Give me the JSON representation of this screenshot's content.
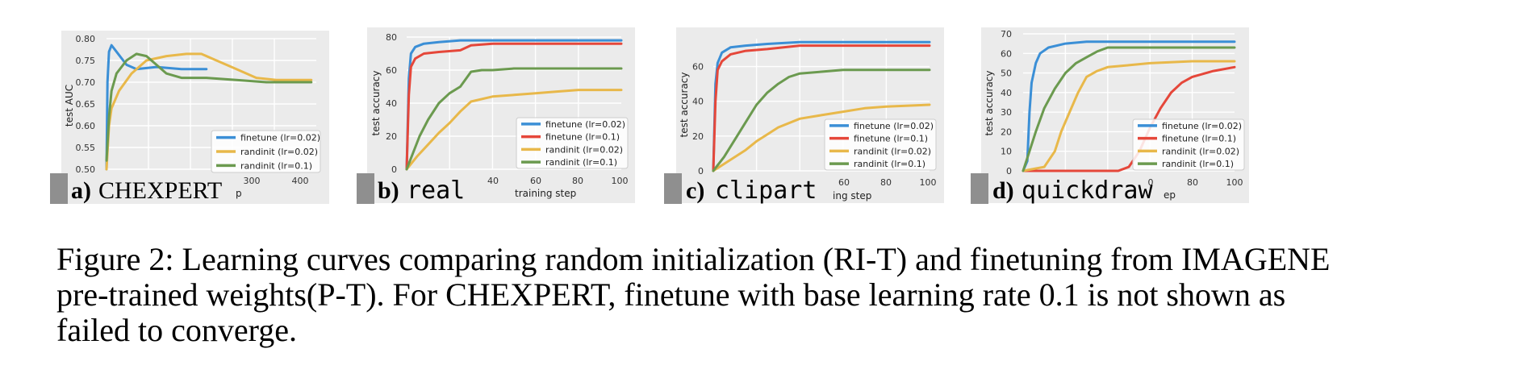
{
  "colors": {
    "finetune_002": "#3b8fd6",
    "finetune_01": "#e5473a",
    "randinit_002": "#e8b84a",
    "randinit_01": "#6b9a4f",
    "panel_bg": "#ebebeb",
    "grid": "#ffffff"
  },
  "panels": [
    {
      "letter": "a)",
      "name": "CHEXPERT",
      "x_label": "p",
      "y_label": "test AUC",
      "chart_data": {
        "type": "line",
        "x_range": [
          0,
          420
        ],
        "ylim": [
          0.5,
          0.8
        ],
        "x_ticks": [
          "300",
          "400"
        ],
        "y_ticks": [
          "0.50",
          "0.55",
          "0.60",
          "0.65",
          "0.70",
          "0.75",
          "0.80"
        ],
        "legend": "bottom-right",
        "series": [
          {
            "name": "finetune (lr=0.02)",
            "color_key": "finetune_002",
            "x": [
              0,
              2,
              5,
              10,
              20,
              40,
              60,
              100,
              150,
              200
            ],
            "y": [
              0.5,
              0.7,
              0.77,
              0.785,
              0.77,
              0.74,
              0.73,
              0.735,
              0.73,
              0.73
            ]
          },
          {
            "name": "randinit (lr=0.02)",
            "color_key": "randinit_002",
            "x": [
              0,
              5,
              10,
              25,
              50,
              80,
              120,
              160,
              190,
              220,
              260,
              300,
              340,
              380,
              410
            ],
            "y": [
              0.5,
              0.6,
              0.64,
              0.68,
              0.72,
              0.75,
              0.76,
              0.765,
              0.765,
              0.75,
              0.73,
              0.71,
              0.705,
              0.705,
              0.705
            ]
          },
          {
            "name": "randinit (lr=0.1)",
            "color_key": "randinit_01",
            "x": [
              0,
              5,
              10,
              20,
              40,
              60,
              80,
              100,
              120,
              150,
              200,
              260,
              320,
              380,
              410
            ],
            "y": [
              0.52,
              0.62,
              0.68,
              0.72,
              0.75,
              0.765,
              0.76,
              0.74,
              0.72,
              0.71,
              0.71,
              0.705,
              0.7,
              0.7,
              0.7
            ]
          }
        ]
      }
    },
    {
      "letter": "b)",
      "name": "real",
      "x_label": "training step",
      "y_label": "test accuracy",
      "chart_data": {
        "type": "line",
        "x_range": [
          0,
          100
        ],
        "ylim": [
          0,
          80
        ],
        "x_ticks": [
          "40",
          "60",
          "80",
          "100"
        ],
        "y_ticks": [
          "0",
          "20",
          "40",
          "60",
          "80"
        ],
        "legend": "bottom-right",
        "series": [
          {
            "name": "finetune (lr=0.02)",
            "color_key": "finetune_002",
            "x": [
              0,
              1,
              2,
              4,
              8,
              15,
              25,
              40,
              60,
              100
            ],
            "y": [
              0,
              55,
              70,
              74,
              76,
              77,
              78,
              78,
              78,
              78
            ]
          },
          {
            "name": "finetune (lr=0.1)",
            "color_key": "finetune_01",
            "x": [
              0,
              1,
              2,
              4,
              8,
              15,
              25,
              30,
              40,
              60,
              100
            ],
            "y": [
              0,
              45,
              62,
              67,
              70,
              71,
              72,
              75,
              76,
              76,
              76
            ]
          },
          {
            "name": "randinit (lr=0.02)",
            "color_key": "randinit_002",
            "x": [
              0,
              5,
              10,
              15,
              20,
              25,
              30,
              40,
              50,
              60,
              70,
              80,
              100
            ],
            "y": [
              0,
              8,
              15,
              22,
              28,
              35,
              41,
              44,
              45,
              46,
              47,
              48,
              48
            ]
          },
          {
            "name": "randinit (lr=0.1)",
            "color_key": "randinit_01",
            "x": [
              0,
              3,
              6,
              10,
              15,
              20,
              25,
              30,
              35,
              40,
              50,
              60,
              70,
              80,
              100
            ],
            "y": [
              0,
              10,
              20,
              30,
              40,
              46,
              50,
              59,
              60,
              60,
              61,
              61,
              61,
              61,
              61
            ]
          }
        ]
      }
    },
    {
      "letter": "c)",
      "name": "clipart",
      "x_label": "ing step",
      "y_label": "test accuracy",
      "chart_data": {
        "type": "line",
        "x_range": [
          0,
          100
        ],
        "ylim": [
          0,
          76
        ],
        "x_ticks": [
          "60",
          "80",
          "100"
        ],
        "y_ticks": [
          "0",
          "20",
          "40",
          "60"
        ],
        "legend": "bottom-right",
        "series": [
          {
            "name": "finetune (lr=0.02)",
            "color_key": "finetune_002",
            "x": [
              0,
              1,
              2,
              4,
              8,
              15,
              25,
              40,
              60,
              100
            ],
            "y": [
              0,
              50,
              62,
              68,
              71,
              72,
              73,
              74,
              74,
              74
            ]
          },
          {
            "name": "finetune (lr=0.1)",
            "color_key": "finetune_01",
            "x": [
              0,
              1,
              2,
              4,
              8,
              15,
              25,
              40,
              60,
              100
            ],
            "y": [
              0,
              40,
              58,
              63,
              67,
              69,
              70,
              72,
              72,
              72
            ]
          },
          {
            "name": "randinit (lr=0.02)",
            "color_key": "randinit_002",
            "x": [
              0,
              5,
              10,
              15,
              20,
              25,
              30,
              40,
              50,
              60,
              70,
              80,
              100
            ],
            "y": [
              0,
              4,
              8,
              12,
              17,
              21,
              25,
              30,
              32,
              34,
              36,
              37,
              38
            ]
          },
          {
            "name": "randinit (lr=0.1)",
            "color_key": "randinit_01",
            "x": [
              0,
              5,
              10,
              15,
              20,
              25,
              30,
              35,
              40,
              50,
              60,
              80,
              100
            ],
            "y": [
              0,
              8,
              18,
              28,
              38,
              45,
              50,
              54,
              56,
              57,
              58,
              58,
              58
            ]
          }
        ]
      }
    },
    {
      "letter": "d)",
      "name": "quickdraw",
      "x_label": "ep",
      "y_label": "test accuracy",
      "chart_data": {
        "type": "line",
        "x_range": [
          0,
          100
        ],
        "ylim": [
          0,
          70
        ],
        "x_ticks": [
          "0",
          "80",
          "100"
        ],
        "y_ticks": [
          "0",
          "10",
          "20",
          "30",
          "40",
          "50",
          "60",
          "70"
        ],
        "legend": "bottom-right",
        "series": [
          {
            "name": "finetune (lr=0.02)",
            "color_key": "finetune_002",
            "x": [
              0,
              2,
              3,
              4,
              6,
              8,
              12,
              20,
              30,
              40,
              60,
              80,
              100
            ],
            "y": [
              0,
              5,
              30,
              45,
              55,
              60,
              63,
              65,
              66,
              66,
              66,
              66,
              66
            ]
          },
          {
            "name": "finetune (lr=0.1)",
            "color_key": "finetune_01",
            "x": [
              0,
              45,
              50,
              55,
              60,
              65,
              70,
              75,
              80,
              90,
              100
            ],
            "y": [
              0,
              0,
              2,
              10,
              22,
              32,
              40,
              45,
              48,
              51,
              53
            ]
          },
          {
            "name": "randinit (lr=0.02)",
            "color_key": "randinit_002",
            "x": [
              0,
              10,
              15,
              18,
              22,
              26,
              30,
              35,
              40,
              50,
              60,
              80,
              100
            ],
            "y": [
              0,
              2,
              10,
              20,
              30,
              40,
              48,
              51,
              53,
              54,
              55,
              56,
              56
            ]
          },
          {
            "name": "randinit (lr=0.1)",
            "color_key": "randinit_01",
            "x": [
              0,
              3,
              6,
              10,
              15,
              20,
              25,
              30,
              35,
              40,
              60,
              80,
              100
            ],
            "y": [
              0,
              10,
              20,
              32,
              42,
              50,
              55,
              58,
              61,
              63,
              63,
              63,
              63
            ]
          }
        ]
      }
    }
  ],
  "caption_lines": [
    "Figure 2: Learning curves comparing random initialization (RI-T) and finetuning from IMAGENE",
    "pre-trained weights(P-T). For CHEXPERT, finetune with base learning rate 0.1 is not shown as",
    "failed to converge."
  ]
}
